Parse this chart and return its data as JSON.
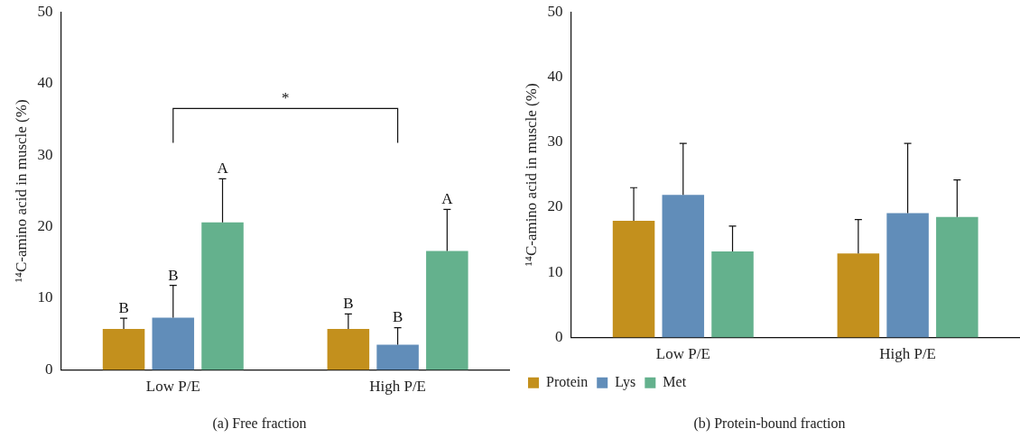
{
  "chart_data": [
    {
      "type": "bar",
      "title": "(a) Free fraction",
      "ylabel": "¹⁴C-amino acid in muscle (%)",
      "categories": [
        "Low P/E",
        "High P/E"
      ],
      "ylim": [
        0,
        50
      ],
      "yticks": [
        0,
        10,
        20,
        30,
        40,
        50
      ],
      "grid": false,
      "legend": false,
      "annotations": [
        "*"
      ],
      "series": [
        {
          "color": "#c3901d",
          "values": [
            5.7,
            5.7
          ],
          "errors": [
            [
              5.7,
              7.2
            ],
            [
              5.7,
              7.8
            ]
          ],
          "value_labels": [
            "B",
            "B"
          ]
        },
        {
          "color": "#618db9",
          "values": [
            7.3,
            3.5
          ],
          "errors": [
            [
              7.3,
              11.8
            ],
            [
              3.5,
              5.9
            ]
          ],
          "value_labels": [
            "B",
            "B"
          ]
        },
        {
          "color": "#64b18d",
          "values": [
            20.6,
            16.6
          ],
          "errors": [
            [
              20.6,
              26.7
            ],
            [
              16.6,
              22.4
            ]
          ],
          "value_labels": [
            "A",
            "A"
          ]
        }
      ]
    },
    {
      "type": "bar",
      "title": "(b) Protein-bound fraction",
      "ylabel": "¹⁴C-amino acid in muscle (%)",
      "categories": [
        "Low P/E",
        "High P/E"
      ],
      "ylim": [
        0,
        50
      ],
      "yticks": [
        0,
        10,
        20,
        30,
        40,
        50
      ],
      "grid": false,
      "legend": "bottom left",
      "series": [
        {
          "name": "Protein",
          "color": "#c3901d",
          "values": [
            17.9,
            12.9
          ],
          "errors": [
            [
              17.9,
              23.0
            ],
            [
              12.9,
              18.1
            ]
          ]
        },
        {
          "name": "Lys",
          "color": "#618db9",
          "values": [
            21.9,
            19.1
          ],
          "errors": [
            [
              21.9,
              29.8
            ],
            [
              19.1,
              29.8
            ]
          ]
        },
        {
          "name": "Met",
          "color": "#64b18d",
          "values": [
            13.2,
            18.5
          ],
          "errors": [
            [
              13.2,
              17.1
            ],
            [
              18.5,
              24.2
            ]
          ]
        }
      ]
    }
  ]
}
